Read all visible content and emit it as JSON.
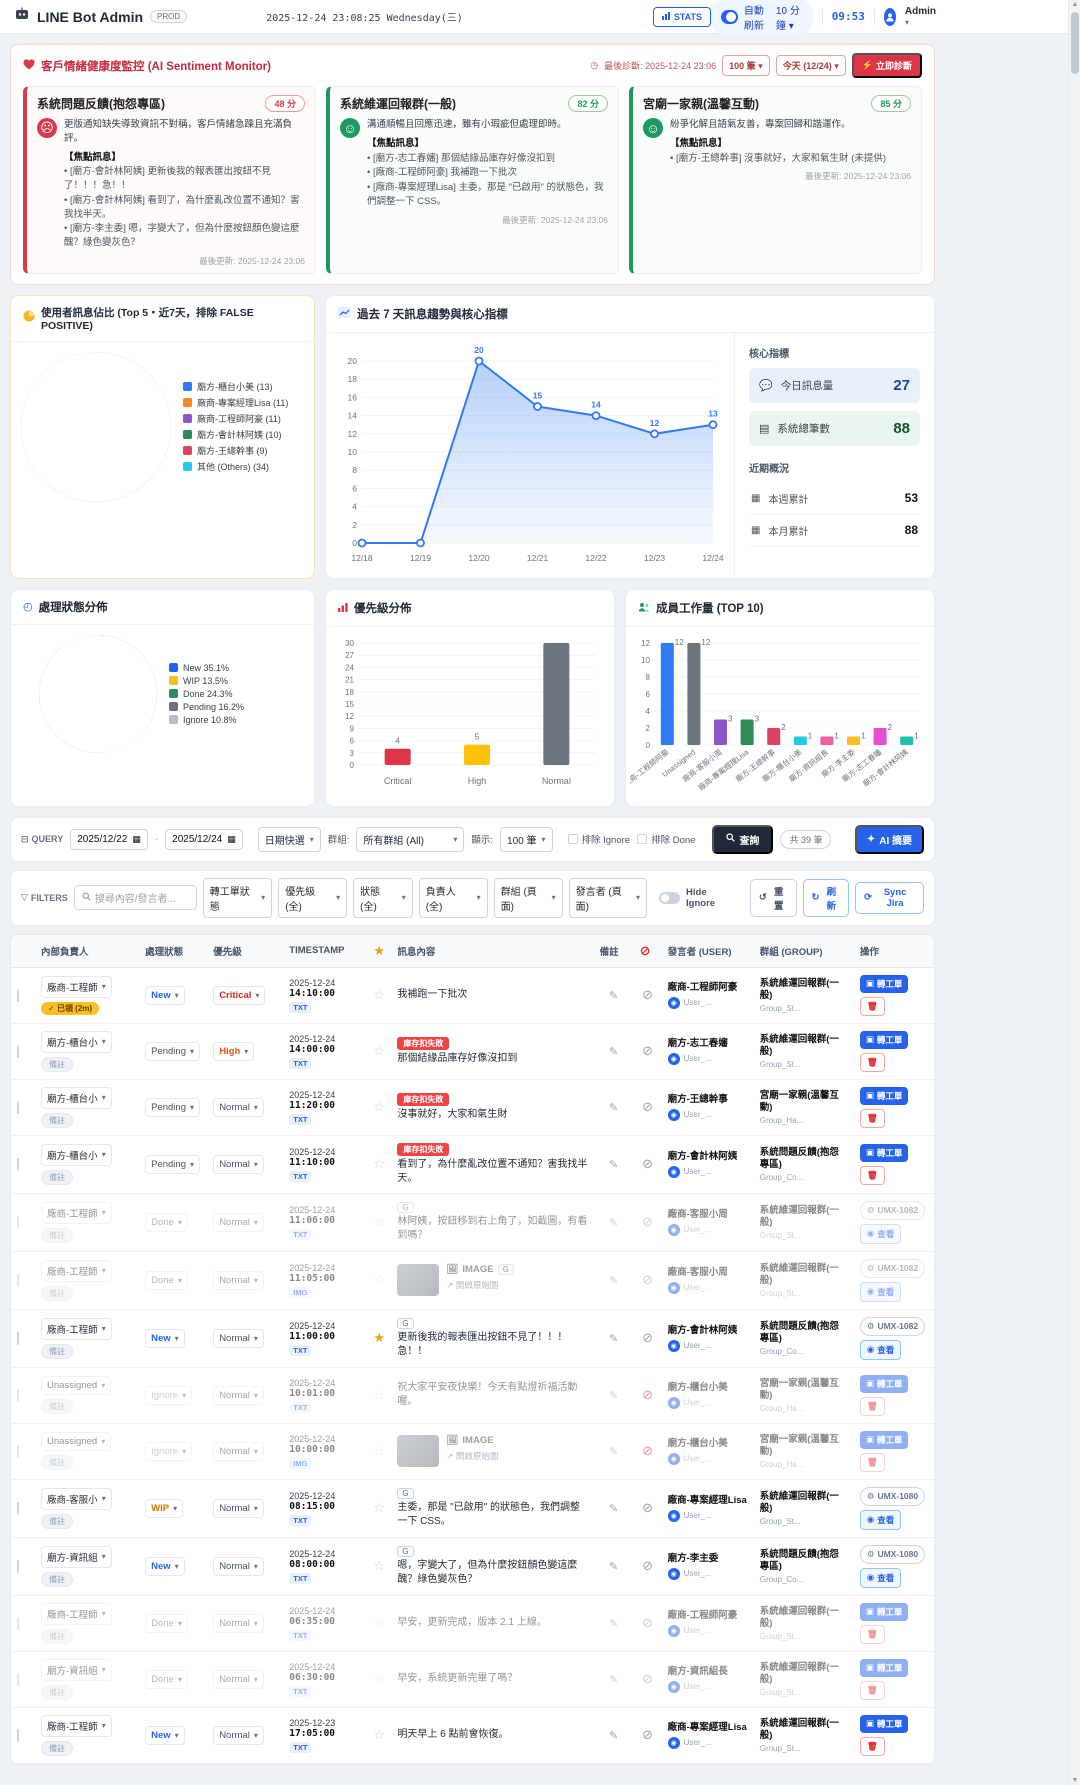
{
  "header": {
    "app_title": "LINE Bot Admin",
    "env_badge": "PROD",
    "datetime": "2025-12-24 23:08:25 Wednesday(三)",
    "stats_button": "STATS",
    "auto_refresh_label": "自動刷新",
    "auto_refresh_interval": "10 分鐘",
    "countdown": "09:53",
    "user_menu": "Admin"
  },
  "sentiment": {
    "title": "客戶情緒健康度監控 (AI Sentiment Monitor)",
    "last_diagnosis": "最後診斷: 2025-12-24 23:06",
    "count_select": "100 筆",
    "day_select": "今天 (12/24)",
    "diagnose_button": "立即診斷",
    "focus_label": "【焦點訊息】",
    "cards": [
      {
        "title": "系統問題反饋(抱怨專區)",
        "score": "48 分",
        "tone": "red",
        "summary": "更版通知缺失導致資訊不對稱，客戶情緒急躁且充滿負評。",
        "messages": [
          "[廟方-會計林阿姨] 更新後我的報表匯出按鈕不見了！！！急！！",
          "[廟方-會計林阿姨] 看到了，為什麼亂改位置不通知？害我找半天。",
          "[廟方-李主委] 嗯，字變大了，但為什麼按鈕顏色變這麼醜？綠色變灰色？"
        ],
        "updated": "最後更新: 2025-12-24 23:06"
      },
      {
        "title": "系統維運回報群(一般)",
        "score": "82 分",
        "tone": "green",
        "summary": "溝通順暢且回應迅速，雖有小瑕疵但處理即時。",
        "messages": [
          "[廟方-志工春嬸] 那個結緣品庫存好像沒扣到",
          "[廠商-工程師阿豪] 我補跑一下批次",
          "[廠商-專案經理Lisa] 主委，那是 \"已啟用\" 的狀態色，我們調整一下 CSS。"
        ],
        "updated": "最後更新: 2025-12-24 23:06"
      },
      {
        "title": "宮廟一家親(溫馨互動)",
        "score": "85 分",
        "tone": "green",
        "summary": "紛爭化解且語氣友善，專案回歸和諧運作。",
        "messages": [
          "[廟方-王總幹事] 沒事就好，大家和氣生財 (未提供)"
        ],
        "updated": "最後更新: 2025-12-24 23:06"
      }
    ]
  },
  "chart_data": [
    {
      "type": "pie",
      "id": "user-share",
      "title": "使用者訊息佔比 (Top 5・近7天，排除 FALSE POSITIVE)",
      "labels": [
        "廟方-櫃台小美 (13)",
        "廠商-專案經理Lisa (11)",
        "廠商-工程師阿豪 (11)",
        "廟方-會計林阿姨 (10)",
        "廟方-王總幹事 (9)",
        "其他 (Others) (34)"
      ],
      "values": [
        13,
        11,
        11,
        10,
        9,
        34
      ],
      "colors": [
        "#2f7bf6",
        "#f6891f",
        "#8e55c9",
        "#2e8b57",
        "#d9435f",
        "#29c5ea"
      ],
      "legend_position": "right"
    },
    {
      "type": "line",
      "id": "trend",
      "title": "過去 7 天訊息趨勢與核心指標",
      "x": [
        "12/18",
        "12/19",
        "12/20",
        "12/21",
        "12/22",
        "12/23",
        "12/24"
      ],
      "values": [
        0,
        0,
        20,
        15,
        14,
        12,
        13
      ],
      "ylim": [
        0,
        20
      ],
      "grid": true,
      "color": "#2f7bf6"
    },
    {
      "type": "pie",
      "id": "status-dist",
      "title": "處理狀態分佈",
      "labels": [
        "New 35.1%",
        "WIP 13.5%",
        "Done 24.3%",
        "Pending 16.2%",
        "Ignore 10.8%"
      ],
      "values": [
        35.1,
        13.5,
        24.3,
        16.2,
        10.8
      ],
      "colors": [
        "#2563eb",
        "#fbbf24",
        "#2e8b57",
        "#6b7280",
        "#b6bdc6"
      ],
      "legend_position": "right"
    },
    {
      "type": "bar",
      "id": "priority-dist",
      "title": "優先級分佈",
      "categories": [
        "Critical",
        "High",
        "Normal"
      ],
      "values": [
        4,
        5,
        30
      ],
      "colors": [
        "#dc3545",
        "#ffc107",
        "#6c757d"
      ],
      "ylim": [
        0,
        30
      ],
      "ystep": 3
    },
    {
      "type": "bar",
      "id": "workload",
      "title": "成員工作量 (TOP 10)",
      "categories": [
        "廠商-工程師阿豪",
        "Unassigned",
        "廠商-客服小周",
        "廠商-專案經理Lisa",
        "廟方-王總幹事",
        "廟方-櫃台小美",
        "廟方-資訊組長",
        "廟方-李主委",
        "廟方-志工春嬸",
        "廟方-會計林阿姨"
      ],
      "values": [
        12,
        12,
        3,
        3,
        2,
        1,
        1,
        1,
        2,
        1
      ],
      "colors": [
        "#2f7bf6",
        "#6c757d",
        "#8e55c9",
        "#2e8b57",
        "#d9435f",
        "#22c9e5",
        "#ec5fa0",
        "#fbbf24",
        "#e44fd3",
        "#20c0b0"
      ],
      "ylim": [
        0,
        12
      ],
      "ystep": 2
    }
  ],
  "metrics": {
    "core_title": "核心指標",
    "core": [
      {
        "label": "今日訊息量",
        "value": "27",
        "tone": "blue"
      },
      {
        "label": "系統總筆數",
        "value": "88",
        "tone": "green"
      }
    ],
    "recent_title": "近期概況",
    "recent": [
      {
        "label": "本週累計",
        "value": "53"
      },
      {
        "label": "本月累計",
        "value": "88"
      }
    ]
  },
  "query_bar": {
    "label": "QUERY",
    "date_from": "2025/12/22",
    "date_to": "2025/12/24",
    "quick_select": "日期快選",
    "group_label": "群組:",
    "group_value": "所有群組 (All)",
    "show_label": "顯示:",
    "show_value": "100 筆",
    "exclude_ignore": "排除 Ignore",
    "exclude_done": "排除 Done",
    "search_button": "查詢",
    "total_badge": "共 39 筆",
    "ai_button": "AI 摘要"
  },
  "filter_bar": {
    "label": "FILTERS",
    "search_placeholder": "搜尋內容/發言者...",
    "selects": [
      "轉工單狀態",
      "優先級 (全)",
      "狀態 (全)",
      "負責人 (全)",
      "群組 (頁面)",
      "發言者 (頁面)"
    ],
    "hide_ignore": "Hide Ignore",
    "reset_button": "重置",
    "refresh_button": "刷新",
    "sync_button": "Sync Jira"
  },
  "table": {
    "headers": [
      "內部負責人",
      "處理狀態",
      "優先級",
      "TIMESTAMP",
      "訊息內容",
      "備註",
      "發言者 (USER)",
      "群組 (GROUP)",
      "操作"
    ],
    "ticket_button": "轉工單",
    "view_button": "查看",
    "image_label": "IMAGE",
    "image_link": "開啟原始圖",
    "rows": [
      {
        "assignee": "廠商-工程師",
        "badge": "已領 (2m)",
        "badge_type": "claimed",
        "status": "New",
        "priority": "Critical",
        "date": "2025-12-24",
        "time": "14:10:00",
        "msg_type": "TXT",
        "starred": false,
        "tags": [],
        "message": "我補跑一下批次",
        "is_image": false,
        "banned": false,
        "sender": "廠商-工程師阿豪",
        "sender_sub": "User_...",
        "group": "系統維運回報群(一般)",
        "group_sub": "Group_St...",
        "ops": "ticket",
        "jira_id": "",
        "muted": false
      },
      {
        "assignee": "廟方-櫃台小",
        "badge": "備註",
        "badge_type": "note",
        "status": "Pending",
        "priority": "High",
        "date": "2025-12-24",
        "time": "14:00:00",
        "msg_type": "TXT",
        "starred": false,
        "tags": [
          "庫存扣失敗"
        ],
        "message": "那個結緣品庫存好像沒扣到",
        "is_image": false,
        "banned": false,
        "sender": "廟方-志工春嬸",
        "sender_sub": "User_...",
        "group": "系統維運回報群(一般)",
        "group_sub": "Group_St...",
        "ops": "ticket",
        "jira_id": "",
        "muted": false
      },
      {
        "assignee": "廟方-櫃台小",
        "badge": "備註",
        "badge_type": "note",
        "status": "Pending",
        "priority": "Normal",
        "date": "2025-12-24",
        "time": "11:20:00",
        "msg_type": "TXT",
        "starred": false,
        "tags": [
          "庫存扣失敗"
        ],
        "message": "沒事就好，大家和氣生財",
        "is_image": false,
        "banned": false,
        "sender": "廟方-王總幹事",
        "sender_sub": "User_...",
        "group": "宮廟一家親(溫馨互動)",
        "group_sub": "Group_Ha...",
        "ops": "ticket",
        "jira_id": "",
        "muted": false
      },
      {
        "assignee": "廟方-櫃台小",
        "badge": "備註",
        "badge_type": "note",
        "status": "Pending",
        "priority": "Normal",
        "date": "2025-12-24",
        "time": "11:10:00",
        "msg_type": "TXT",
        "starred": false,
        "tags": [
          "庫存扣失敗"
        ],
        "message": "看到了，為什麼亂改位置不通知？害我找半天。",
        "is_image": false,
        "banned": false,
        "sender": "廟方-會計林阿姨",
        "sender_sub": "User_...",
        "group": "系統問題反饋(抱怨專區)",
        "group_sub": "Group_Co...",
        "ops": "ticket",
        "jira_id": "",
        "muted": false
      },
      {
        "assignee": "廠商-工程師",
        "badge": "備註",
        "badge_type": "note",
        "status": "Done",
        "priority": "Normal",
        "date": "2025-12-24",
        "time": "11:06:00",
        "msg_type": "TXT",
        "starred": false,
        "tags": [
          "G"
        ],
        "message": "林阿姨，按鈕移到右上角了，如截圖，有看到嗎？",
        "is_image": false,
        "banned": false,
        "sender": "廠商-客服小周",
        "sender_sub": "User_...",
        "group": "系統維運回報群(一般)",
        "group_sub": "Group_St...",
        "ops": "jira",
        "jira_id": "UMX-1082",
        "muted": true
      },
      {
        "assignee": "廠商-工程師",
        "badge": "備註",
        "badge_type": "note",
        "status": "Done",
        "priority": "Normal",
        "date": "2025-12-24",
        "time": "11:05:00",
        "msg_type": "IMG",
        "starred": false,
        "tags": [
          "G"
        ],
        "message": "",
        "is_image": true,
        "banned": false,
        "sender": "廠商-客服小周",
        "sender_sub": "User_...",
        "group": "系統維運回報群(一般)",
        "group_sub": "Group_St...",
        "ops": "jira",
        "jira_id": "UMX-1082",
        "muted": true
      },
      {
        "assignee": "廠商-工程師",
        "badge": "備註",
        "badge_type": "note",
        "status": "New",
        "priority": "Normal",
        "date": "2025-12-24",
        "time": "11:00:00",
        "msg_type": "TXT",
        "starred": true,
        "tags": [
          "G"
        ],
        "message": "更新後我的報表匯出按鈕不見了！！！急！！",
        "is_image": false,
        "banned": false,
        "sender": "廟方-會計林阿姨",
        "sender_sub": "User_...",
        "group": "系統問題反饋(抱怨專區)",
        "group_sub": "Group_Co...",
        "ops": "jira",
        "jira_id": "UMX-1082",
        "muted": false
      },
      {
        "assignee": "Unassigned",
        "badge": "備註",
        "badge_type": "note",
        "status": "Ignore",
        "priority": "Normal",
        "date": "2025-12-24",
        "time": "10:01:00",
        "msg_type": "TXT",
        "starred": false,
        "tags": [],
        "message": "祝大家平安夜快樂！今天有點燈祈福活動喔。",
        "is_image": false,
        "banned": true,
        "sender": "廟方-櫃台小美",
        "sender_sub": "User_...",
        "group": "宮廟一家親(溫馨互動)",
        "group_sub": "Group_Ha...",
        "ops": "ticket",
        "jira_id": "",
        "muted": true
      },
      {
        "assignee": "Unassigned",
        "badge": "備註",
        "badge_type": "note",
        "status": "Ignore",
        "priority": "Normal",
        "date": "2025-12-24",
        "time": "10:00:00",
        "msg_type": "IMG",
        "starred": false,
        "tags": [],
        "message": "",
        "is_image": true,
        "banned": true,
        "sender": "廟方-櫃台小美",
        "sender_sub": "User_...",
        "group": "宮廟一家親(溫馨互動)",
        "group_sub": "Group_Ha...",
        "ops": "ticket",
        "jira_id": "",
        "muted": true
      },
      {
        "assignee": "廠商-客服小",
        "badge": "備註",
        "badge_type": "note",
        "status": "WIP",
        "priority": "Normal",
        "date": "2025-12-24",
        "time": "08:15:00",
        "msg_type": "TXT",
        "starred": false,
        "tags": [
          "G"
        ],
        "message": "主委，那是 \"已啟用\" 的狀態色，我們調整一下 CSS。",
        "is_image": false,
        "banned": false,
        "sender": "廠商-專案經理Lisa",
        "sender_sub": "User_...",
        "group": "系統維運回報群(一般)",
        "group_sub": "Group_St...",
        "ops": "jira",
        "jira_id": "UMX-1080",
        "muted": false
      },
      {
        "assignee": "廟方-資訊組",
        "badge": "備註",
        "badge_type": "note",
        "status": "New",
        "priority": "Normal",
        "date": "2025-12-24",
        "time": "08:00:00",
        "msg_type": "TXT",
        "starred": false,
        "tags": [
          "G"
        ],
        "message": "嗯，字變大了，但為什麼按鈕顏色變這麼醜？綠色變灰色？",
        "is_image": false,
        "banned": false,
        "sender": "廟方-李主委",
        "sender_sub": "User_...",
        "group": "系統問題反饋(抱怨專區)",
        "group_sub": "Group_Co...",
        "ops": "jira",
        "jira_id": "UMX-1080",
        "muted": false
      },
      {
        "assignee": "廠商-工程師",
        "badge": "備註",
        "badge_type": "note",
        "status": "Done",
        "priority": "Normal",
        "date": "2025-12-24",
        "time": "06:35:00",
        "msg_type": "TXT",
        "starred": false,
        "tags": [],
        "message": "早安，更新完成，版本 2.1 上線。",
        "is_image": false,
        "banned": false,
        "sender": "廠商-工程師阿豪",
        "sender_sub": "User_...",
        "group": "系統維運回報群(一般)",
        "group_sub": "Group_St...",
        "ops": "ticket",
        "jira_id": "",
        "muted": true
      },
      {
        "assignee": "廟方-資訊組",
        "badge": "備註",
        "badge_type": "note",
        "status": "Done",
        "priority": "Normal",
        "date": "2025-12-24",
        "time": "06:30:00",
        "msg_type": "TXT",
        "starred": false,
        "tags": [],
        "message": "早安，系統更新完畢了嗎？",
        "is_image": false,
        "banned": false,
        "sender": "廟方-資訊組長",
        "sender_sub": "User_...",
        "group": "系統維運回報群(一般)",
        "group_sub": "Group_St...",
        "ops": "ticket",
        "jira_id": "",
        "muted": true
      },
      {
        "assignee": "廠商-工程師",
        "badge": "備註",
        "badge_type": "note",
        "status": "New",
        "priority": "Normal",
        "date": "2025-12-23",
        "time": "17:05:00",
        "msg_type": "TXT",
        "starred": false,
        "tags": [],
        "message": "明天早上 6 點前會恢復。",
        "is_image": false,
        "banned": false,
        "sender": "廠商-專案經理Lisa",
        "sender_sub": "User_...",
        "group": "系統維運回報群(一般)",
        "group_sub": "Group_St...",
        "ops": "ticket",
        "jira_id": "",
        "muted": false
      }
    ]
  },
  "colors": {
    "accent_blue": "#2563eb",
    "accent_red": "#dc3545",
    "status": {
      "New": "#2563eb",
      "Pending": "#475569",
      "Done": "#64748b",
      "Ignore": "#94a3b8",
      "WIP": "#d97706"
    },
    "priority": {
      "Critical": "#dc2626",
      "High": "#ea580c",
      "Normal": "#475569"
    }
  }
}
